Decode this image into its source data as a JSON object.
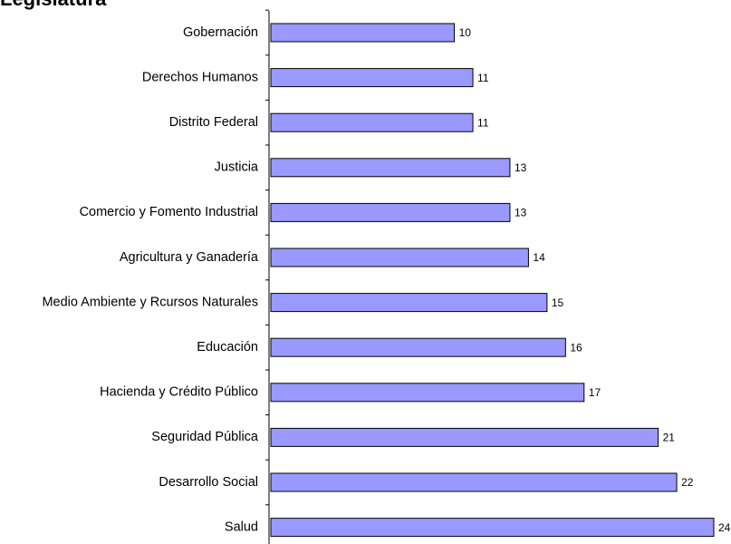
{
  "chart_data": {
    "type": "barh",
    "title": "Legislatura",
    "categories": [
      "Gobernación",
      "Derechos Humanos",
      "Distrito Federal",
      "Justicia",
      "Comercio y Fomento Industrial",
      "Agricultura y Ganadería",
      "Medio Ambiente y Rcursos Naturales",
      "Educación",
      "Hacienda y Crédito Público",
      "Seguridad Pública",
      "Desarrollo Social",
      "Salud"
    ],
    "values": [
      10,
      11,
      11,
      13,
      13,
      14,
      15,
      16,
      17,
      21,
      22,
      24
    ],
    "color": "#9999ff"
  }
}
